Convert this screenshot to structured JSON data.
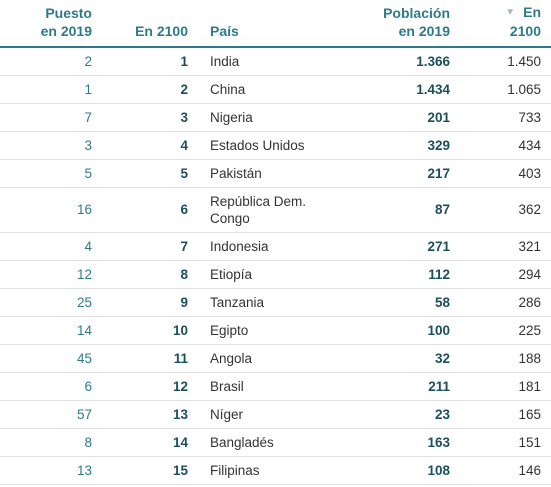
{
  "table": {
    "headers": {
      "rank_2019": [
        "Puesto",
        "en 2019"
      ],
      "rank_2100": "En 2100",
      "country": "País",
      "pop_2019": [
        "Población",
        "en 2019"
      ],
      "pop_2100": [
        "En",
        "2100"
      ]
    },
    "sort_icon": "sort-descending-icon",
    "accent_color": "#2e7a8c",
    "rows": [
      {
        "rank_2019": "2",
        "rank_2100": "1",
        "country": "India",
        "pop_2019": "1.366",
        "pop_2100": "1.450"
      },
      {
        "rank_2019": "1",
        "rank_2100": "2",
        "country": "China",
        "pop_2019": "1.434",
        "pop_2100": "1.065"
      },
      {
        "rank_2019": "7",
        "rank_2100": "3",
        "country": "Nigeria",
        "pop_2019": "201",
        "pop_2100": "733"
      },
      {
        "rank_2019": "3",
        "rank_2100": "4",
        "country": "Estados Unidos",
        "pop_2019": "329",
        "pop_2100": "434"
      },
      {
        "rank_2019": "5",
        "rank_2100": "5",
        "country": "Pakistán",
        "pop_2019": "217",
        "pop_2100": "403"
      },
      {
        "rank_2019": "16",
        "rank_2100": "6",
        "country": "República Dem. Congo",
        "pop_2019": "87",
        "pop_2100": "362"
      },
      {
        "rank_2019": "4",
        "rank_2100": "7",
        "country": "Indonesia",
        "pop_2019": "271",
        "pop_2100": "321"
      },
      {
        "rank_2019": "12",
        "rank_2100": "8",
        "country": "Etiopía",
        "pop_2019": "112",
        "pop_2100": "294"
      },
      {
        "rank_2019": "25",
        "rank_2100": "9",
        "country": "Tanzania",
        "pop_2019": "58",
        "pop_2100": "286"
      },
      {
        "rank_2019": "14",
        "rank_2100": "10",
        "country": "Egipto",
        "pop_2019": "100",
        "pop_2100": "225"
      },
      {
        "rank_2019": "45",
        "rank_2100": "11",
        "country": "Angola",
        "pop_2019": "32",
        "pop_2100": "188"
      },
      {
        "rank_2019": "6",
        "rank_2100": "12",
        "country": "Brasil",
        "pop_2019": "211",
        "pop_2100": "181"
      },
      {
        "rank_2019": "57",
        "rank_2100": "13",
        "country": "Níger",
        "pop_2019": "23",
        "pop_2100": "165"
      },
      {
        "rank_2019": "8",
        "rank_2100": "14",
        "country": "Bangladés",
        "pop_2019": "163",
        "pop_2100": "151"
      },
      {
        "rank_2019": "13",
        "rank_2100": "15",
        "country": "Filipinas",
        "pop_2019": "108",
        "pop_2100": "146"
      }
    ]
  }
}
